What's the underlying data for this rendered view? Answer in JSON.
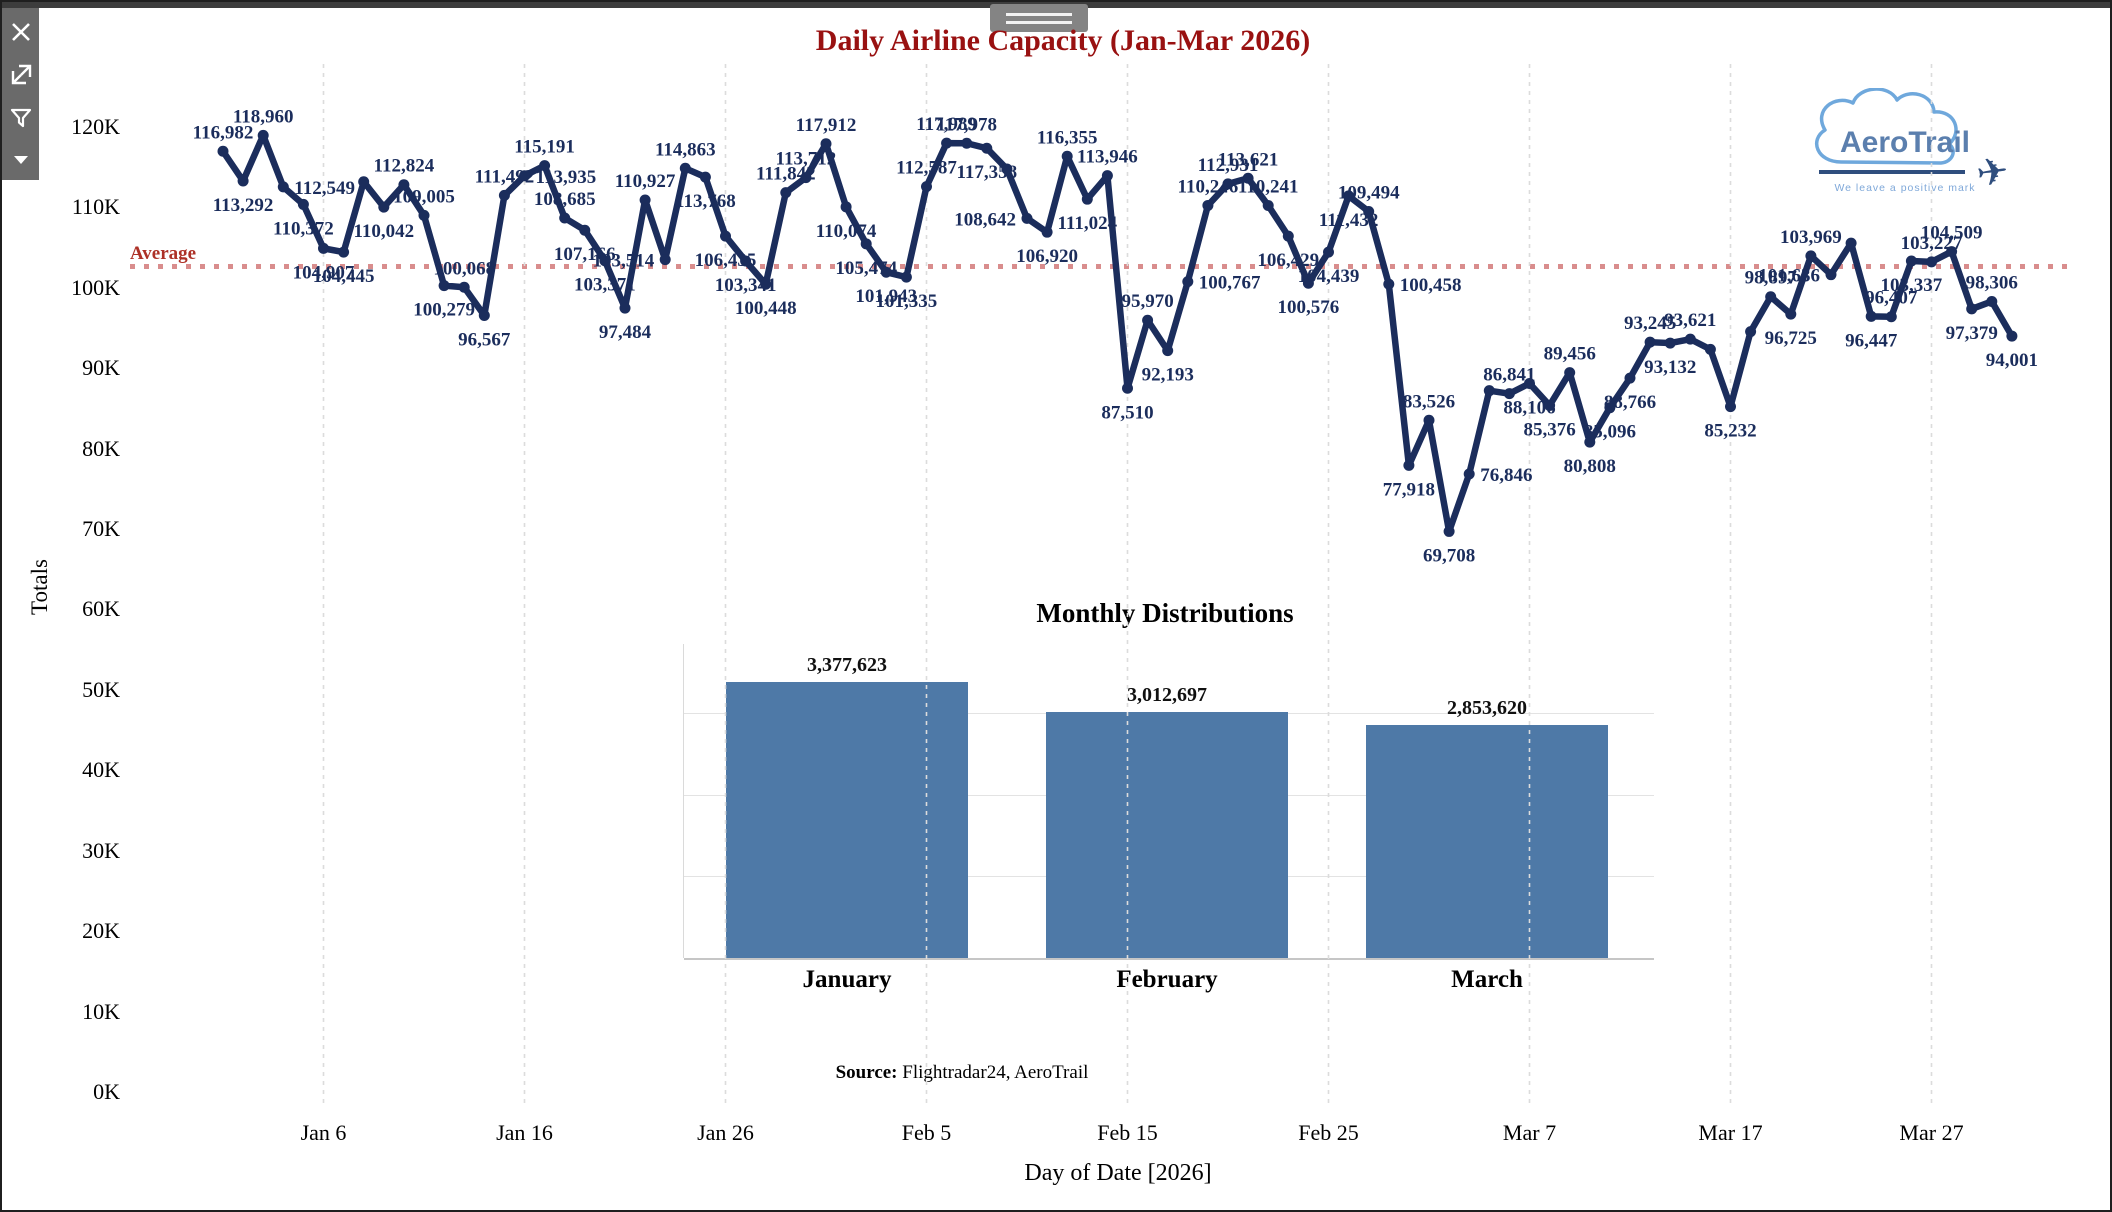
{
  "toolbar": {
    "icons": [
      "close",
      "open-external",
      "filter",
      "collapse-caret"
    ]
  },
  "source": {
    "label": "Source:",
    "value": " Flightradar24, AeroTrail"
  },
  "logo": {
    "name": "AeroTrail",
    "tagline": "We leave a positive mark"
  },
  "colors": {
    "line_series": "#1b2d5c",
    "data_labels": "#1b2d5c",
    "title_red": "#991111",
    "average_line": "#d98d8d",
    "average_label": "#ad3127",
    "bar_fill": "#4e79a7",
    "gridline": "#dcdcdc",
    "toolbar_bg": "#6a6a6a"
  },
  "chart_data": [
    {
      "type": "line",
      "title": "Daily Airline Capacity (Jan-Mar 2026)",
      "xlabel": "Day of Date [2026]",
      "ylabel": "Totals",
      "ylim": [
        0,
        125000
      ],
      "grid": "vertical-dashed",
      "average_label": "Average",
      "average_value": 102710,
      "start_date": "Jan 1",
      "end_date": "Mar 31",
      "y_ticks": [
        "0K",
        "10K",
        "20K",
        "30K",
        "40K",
        "50K",
        "60K",
        "70K",
        "80K",
        "90K",
        "100K",
        "110K",
        "120K"
      ],
      "x_ticks": [
        {
          "label": "Jan 6",
          "day": 6
        },
        {
          "label": "Jan 16",
          "day": 16
        },
        {
          "label": "Jan 26",
          "day": 26
        },
        {
          "label": "Feb 5",
          "day": 36
        },
        {
          "label": "Feb 15",
          "day": 46
        },
        {
          "label": "Feb 25",
          "day": 56
        },
        {
          "label": "Mar 7",
          "day": 66
        },
        {
          "label": "Mar 17",
          "day": 76
        },
        {
          "label": "Mar 27",
          "day": 86
        }
      ],
      "values": [
        116982,
        113292,
        118960,
        112549,
        110372,
        104907,
        104445,
        113190,
        110042,
        112824,
        109005,
        100279,
        100068,
        96567,
        111492,
        113935,
        115191,
        108685,
        107166,
        103371,
        97484,
        110927,
        103514,
        114863,
        113768,
        106435,
        103341,
        100448,
        111842,
        113712,
        117912,
        110074,
        105474,
        101943,
        101335,
        112587,
        117989,
        117978,
        117358,
        114780,
        108642,
        106920,
        116355,
        111024,
        113946,
        87510,
        95970,
        92193,
        100767,
        110246,
        112931,
        113621,
        110241,
        106429,
        100576,
        104439,
        111432,
        109494,
        100458,
        77918,
        83526,
        69708,
        76846,
        87210,
        86841,
        88106,
        85376,
        89456,
        80808,
        85096,
        88766,
        93245,
        93132,
        93621,
        92350,
        85232,
        94560,
        98897,
        96725,
        103969,
        101636,
        105560,
        96447,
        96407,
        103337,
        103227,
        104509,
        97379,
        98306,
        94001
      ],
      "labels": [
        "116,982",
        "113,292",
        "118,960",
        "112,549",
        "110,372",
        "104,907",
        "104,445",
        "",
        "110,042",
        "112,824",
        "109,005",
        "100,279",
        "100,068",
        "96,567",
        "111,492",
        "113,935",
        "115,191",
        "108,685",
        "107,166",
        "103,371",
        "97,484",
        "110,927",
        "103,514",
        "114,863",
        "113,768",
        "106,435",
        "103,341",
        "100,448",
        "111,842",
        "113,712",
        "117,912",
        "110,074",
        "105,474",
        "101,943",
        "101,335",
        "112,587",
        "117,989",
        "117,978",
        "117,358",
        "",
        "108,642",
        "106,920",
        "116,355",
        "111,024",
        "113,946",
        "87,510",
        "95,970",
        "92,193",
        "100,767",
        "110,246",
        "112,931",
        "113,621",
        "110,241",
        "106,429",
        "100,576",
        "104,439",
        "111,432",
        "109,494",
        "100,458",
        "77,918",
        "83,526",
        "69,708",
        "76,846",
        "",
        "86,841",
        "88,106",
        "85,376",
        "89,456",
        "80,808",
        "85,096",
        "88,766",
        "93,245",
        "93,132",
        "93,621",
        "",
        "85,232",
        "",
        "98,897",
        "96,725",
        "103,969",
        "101,636",
        "",
        "96,447",
        "96,407",
        "103,337",
        "103,227",
        "104,509",
        "97,379",
        "98,306",
        "94,001"
      ],
      "label_side_overrides": {
        "4": "r",
        "11": "a",
        "13": "a",
        "16": "r",
        "18": "a",
        "23": "l",
        "38": "a",
        "41": "l",
        "49": "r",
        "53": "a",
        "56": "b",
        "57": "b",
        "58": "a",
        "59": "r",
        "63": "r",
        "65": "a",
        "66": "b",
        "70": "b",
        "71": "b",
        "81": "l",
        "84": "a",
        "85": "b",
        "86": "a"
      }
    },
    {
      "type": "bar",
      "title": "Monthly Distributions",
      "categories": [
        "January",
        "February",
        "March"
      ],
      "values": [
        3377623,
        3012697,
        2853620
      ],
      "value_labels": [
        "3,377,623",
        "3,012,697",
        "2,853,620"
      ],
      "grid": "horizontal-light",
      "legend": "none"
    }
  ]
}
